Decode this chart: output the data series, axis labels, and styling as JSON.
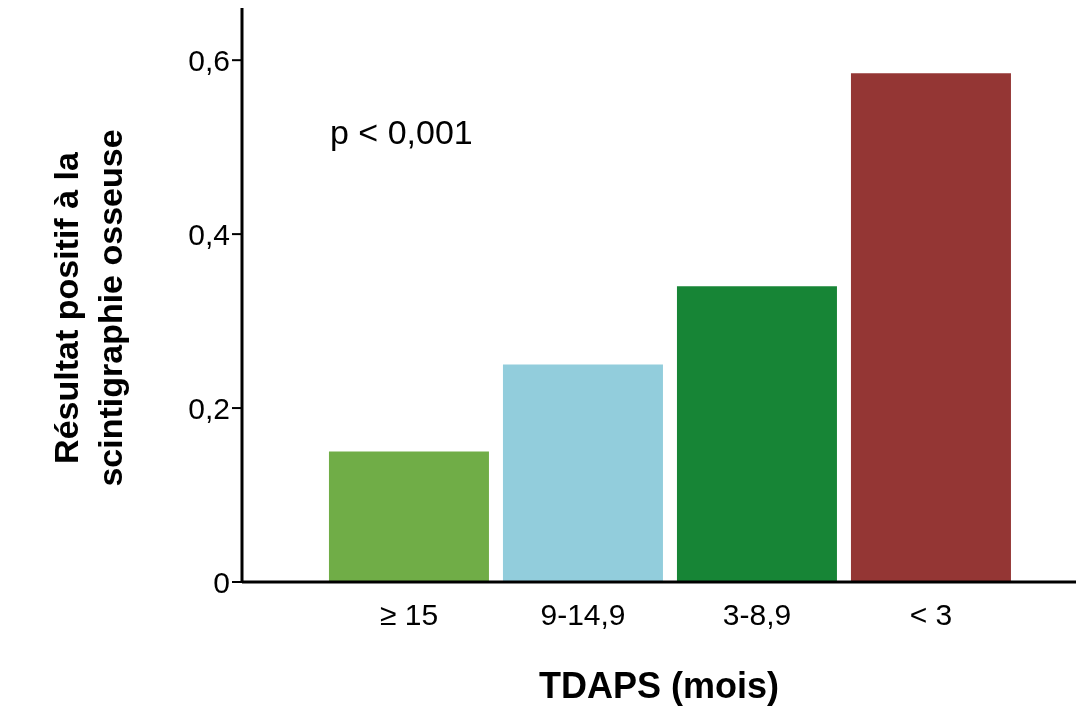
{
  "chart_data": {
    "type": "bar",
    "xlabel": "TDAPS (mois)",
    "ylabel": "Résultat positif à la scintigraphie osseuse",
    "categories": [
      "≥ 15",
      "9-14,9",
      "3-8,9",
      "< 3"
    ],
    "values": [
      0.15,
      0.25,
      0.34,
      0.585
    ],
    "colors": [
      "#70ad47",
      "#92cddc",
      "#178536",
      "#943634"
    ],
    "ylim": [
      0,
      0.66
    ],
    "yticks": [
      {
        "value": 0,
        "label": "0"
      },
      {
        "value": 0.2,
        "label": "0,2"
      },
      {
        "value": 0.4,
        "label": "0,4"
      },
      {
        "value": 0.6,
        "label": "0,6"
      }
    ],
    "annotations": [
      "p < 0,001"
    ],
    "grid": false,
    "legend": false
  }
}
